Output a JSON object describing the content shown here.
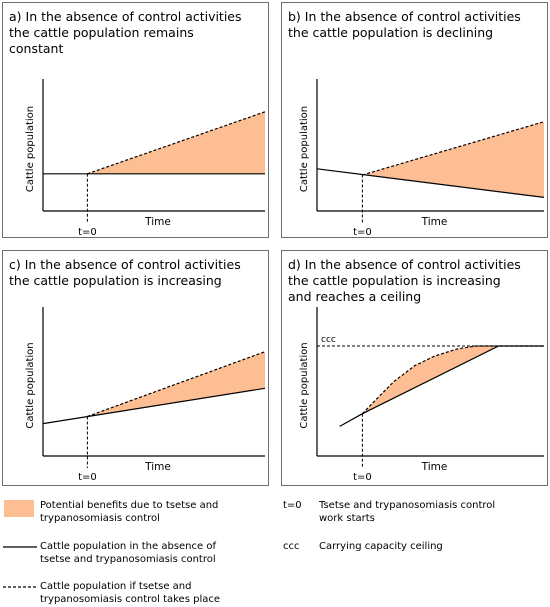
{
  "colors": {
    "benefit_fill": "#fdbe94",
    "line": "#000000",
    "border": "#6e6e6e"
  },
  "panels": [
    {
      "title": "a) In the absence of control activities\nthe cattle population remains\nconstant",
      "ylabel": "Cattle population",
      "xlabel": "Time",
      "t0_label": "t=0",
      "ccc_label": "",
      "chart_data": {
        "type": "area",
        "x_range": [
          0,
          10
        ],
        "y_range": [
          0,
          10
        ],
        "t0": 2,
        "solid_line": [
          [
            0,
            3
          ],
          [
            10,
            3
          ]
        ],
        "dashed_line": [
          [
            2,
            3
          ],
          [
            10,
            8
          ]
        ]
      }
    },
    {
      "title": "b) In the absence of control activities\nthe cattle population is declining",
      "ylabel": "Cattle population",
      "xlabel": "Time",
      "t0_label": "t=0",
      "ccc_label": "",
      "chart_data": {
        "type": "area",
        "x_range": [
          0,
          10
        ],
        "y_range": [
          0,
          10
        ],
        "t0": 2,
        "solid_line": [
          [
            0,
            3.4
          ],
          [
            10,
            1.1
          ]
        ],
        "dashed_line": [
          [
            2,
            2.9
          ],
          [
            10,
            7.2
          ]
        ]
      }
    },
    {
      "title": "c) In the absence of control activities\nthe cattle population is increasing",
      "ylabel": "Cattle population",
      "xlabel": "Time",
      "t0_label": "t=0",
      "ccc_label": "",
      "chart_data": {
        "type": "area",
        "x_range": [
          0,
          10
        ],
        "y_range": [
          0,
          10
        ],
        "t0": 2,
        "solid_line": [
          [
            0,
            2.3
          ],
          [
            10,
            4.8
          ]
        ],
        "dashed_line": [
          [
            2,
            2.8
          ],
          [
            10,
            7.4
          ]
        ]
      }
    },
    {
      "title": "d) In the absence of control activities\nthe cattle population is increasing\nand reaches a ceiling",
      "ylabel": "Cattle population",
      "xlabel": "Time",
      "t0_label": "t=0",
      "ccc_label": "ccc",
      "chart_data": {
        "type": "area",
        "x_range": [
          0,
          10
        ],
        "y_range": [
          0,
          10
        ],
        "t0": 2,
        "ceiling": 7.8,
        "solid_line": [
          [
            1,
            2.1
          ],
          [
            2,
            3
          ],
          [
            8,
            7.8
          ],
          [
            10,
            7.8
          ]
        ],
        "dashed_line": [
          [
            2,
            3
          ],
          [
            2.6,
            4
          ],
          [
            3.4,
            5.3
          ],
          [
            4.3,
            6.4
          ],
          [
            5.2,
            7.1
          ],
          [
            6.2,
            7.6
          ],
          [
            7,
            7.8
          ],
          [
            10,
            7.8
          ]
        ]
      }
    }
  ],
  "legend": {
    "benefits": "Potential benefits due to tsetse and\ntrypanosomiasis control",
    "solid": "Cattle population in the absence of\ntsetse and trypanosomiasis control",
    "dashed": "Cattle population if tsetse and\ntrypanosomiasis control takes place",
    "t0_key": "t=0",
    "t0_desc": "Tsetse and trypanosomiasis control\nwork starts",
    "ccc_key": "ccc",
    "ccc_desc": "Carrying capacity ceiling"
  }
}
